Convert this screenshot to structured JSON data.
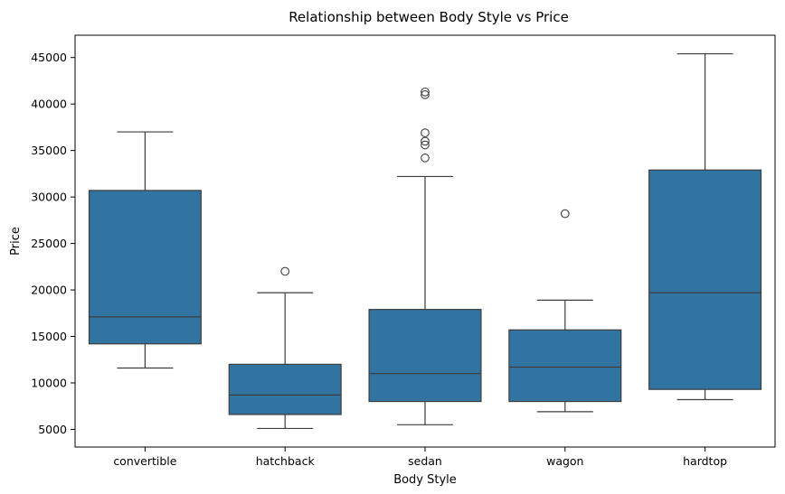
{
  "chart_data": {
    "type": "box",
    "title": "Relationship between Body Style vs Price",
    "xlabel": "Body Style",
    "ylabel": "Price",
    "ylim": [
      3100,
      47400
    ],
    "yticks": [
      5000,
      10000,
      15000,
      20000,
      25000,
      30000,
      35000,
      40000,
      45000
    ],
    "ytick_labels": [
      "5000",
      "10000",
      "15000",
      "20000",
      "25000",
      "30000",
      "35000",
      "40000",
      "45000"
    ],
    "grid": false,
    "colors": {
      "box_fill": "#3274a1",
      "line": "#3d3d3d"
    },
    "categories": [
      "convertible",
      "hatchback",
      "sedan",
      "wagon",
      "hardtop"
    ],
    "boxes": [
      {
        "category": "convertible",
        "whisker_low": 11600,
        "q1": 14200,
        "median": 17100,
        "q3": 30700,
        "whisker_high": 37000,
        "outliers": []
      },
      {
        "category": "hatchback",
        "whisker_low": 5100,
        "q1": 6600,
        "median": 8700,
        "q3": 12000,
        "whisker_high": 19700,
        "outliers": [
          22000
        ]
      },
      {
        "category": "sedan",
        "whisker_low": 5500,
        "q1": 8000,
        "median": 11000,
        "q3": 17900,
        "whisker_high": 32200,
        "outliers": [
          34200,
          35600,
          36000,
          36900,
          41000,
          41300
        ]
      },
      {
        "category": "wagon",
        "whisker_low": 6900,
        "q1": 8000,
        "median": 11700,
        "q3": 15700,
        "whisker_high": 18900,
        "outliers": [
          28200
        ]
      },
      {
        "category": "hardtop",
        "whisker_low": 8200,
        "q1": 9300,
        "median": 19700,
        "q3": 32900,
        "whisker_high": 45400,
        "outliers": []
      }
    ]
  }
}
